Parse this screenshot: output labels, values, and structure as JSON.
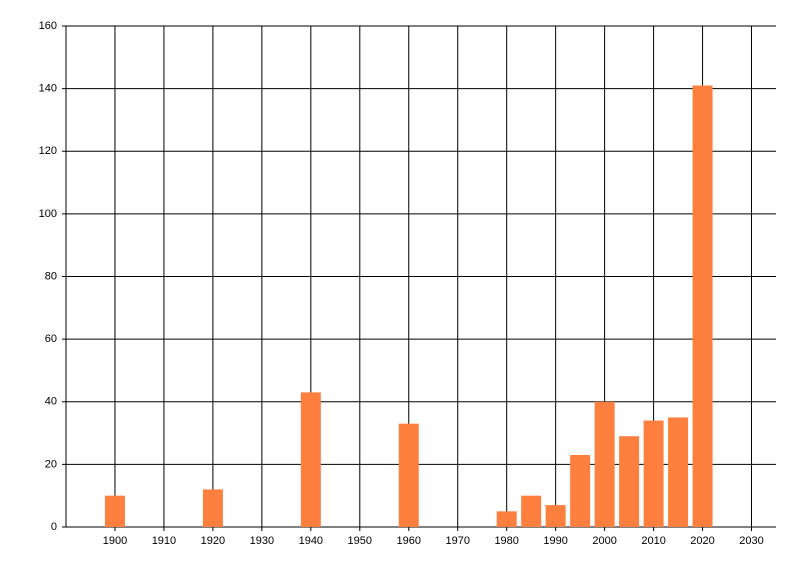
{
  "chart_data": {
    "type": "bar",
    "x": [
      1900,
      1920,
      1940,
      1960,
      1980,
      1985,
      1990,
      1995,
      2000,
      2005,
      2010,
      2015,
      2020
    ],
    "values": [
      10,
      12,
      43,
      33,
      5,
      10,
      7,
      23,
      40,
      29,
      34,
      35,
      141
    ],
    "color": "#ff7f3f",
    "xlim": [
      1890,
      2035
    ],
    "xticks": [
      1900,
      1910,
      1920,
      1930,
      1940,
      1950,
      1960,
      1970,
      1980,
      1990,
      2000,
      2010,
      2020,
      2030
    ],
    "ylim": [
      0,
      160
    ],
    "yticks": [
      0,
      20,
      40,
      60,
      80,
      100,
      120,
      140,
      160
    ],
    "grid": true
  }
}
